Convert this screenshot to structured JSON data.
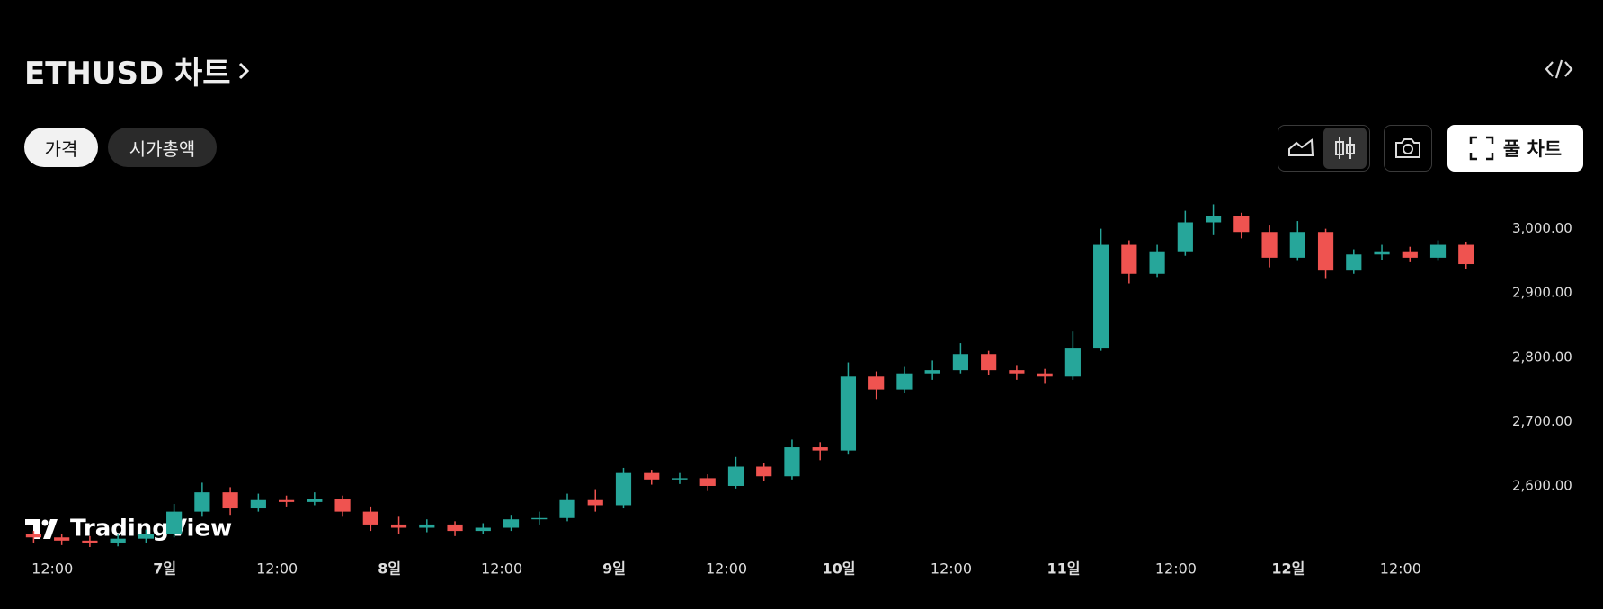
{
  "header": {
    "title": "ETHUSD 차트"
  },
  "tabs": [
    "가격",
    "시가총액"
  ],
  "buttons": {
    "full_chart": "풀 차트"
  },
  "watermark": "TradingView",
  "chart_data": {
    "type": "candlestick",
    "x": [
      10,
      13,
      16,
      19,
      22,
      25,
      28,
      31,
      34,
      37,
      40,
      43,
      46,
      49,
      52,
      55,
      58,
      61,
      64,
      67,
      70,
      73,
      76,
      79,
      82,
      85,
      88,
      91,
      94,
      97,
      100,
      103,
      106,
      109,
      112,
      115,
      118,
      121,
      124,
      127,
      130,
      133,
      136,
      139,
      142,
      145,
      148,
      151,
      154,
      157,
      160,
      163
    ],
    "open": [
      2525,
      2520,
      2515,
      2512,
      2518,
      2525,
      2560,
      2590,
      2565,
      2578,
      2575,
      2580,
      2560,
      2540,
      2535,
      2540,
      2530,
      2535,
      2548,
      2550,
      2578,
      2570,
      2620,
      2610,
      2612,
      2600,
      2630,
      2615,
      2660,
      2655,
      2770,
      2750,
      2775,
      2780,
      2805,
      2780,
      2775,
      2770,
      2815,
      2975,
      2930,
      2965,
      3010,
      3020,
      2995,
      2955,
      2995,
      2935,
      2960,
      2965,
      2955,
      2975
    ],
    "high": [
      2530,
      2525,
      2522,
      2525,
      2532,
      2572,
      2605,
      2598,
      2588,
      2585,
      2590,
      2585,
      2568,
      2552,
      2548,
      2545,
      2542,
      2555,
      2560,
      2588,
      2595,
      2628,
      2625,
      2620,
      2618,
      2645,
      2635,
      2672,
      2668,
      2792,
      2778,
      2785,
      2795,
      2822,
      2810,
      2788,
      2782,
      2840,
      3000,
      2982,
      2975,
      3028,
      3038,
      3025,
      3005,
      3012,
      3000,
      2968,
      2975,
      2972,
      2982,
      2980
    ],
    "low": [
      2512,
      2508,
      2505,
      2506,
      2512,
      2520,
      2552,
      2555,
      2560,
      2568,
      2570,
      2552,
      2530,
      2525,
      2528,
      2522,
      2525,
      2530,
      2540,
      2545,
      2560,
      2565,
      2602,
      2603,
      2592,
      2596,
      2608,
      2610,
      2640,
      2650,
      2735,
      2745,
      2765,
      2775,
      2772,
      2765,
      2760,
      2765,
      2810,
      2915,
      2925,
      2958,
      2990,
      2985,
      2940,
      2950,
      2922,
      2930,
      2952,
      2948,
      2950,
      2938
    ],
    "close": [
      2520,
      2515,
      2512,
      2518,
      2525,
      2560,
      2590,
      2565,
      2578,
      2575,
      2580,
      2560,
      2540,
      2535,
      2540,
      2530,
      2535,
      2548,
      2550,
      2578,
      2570,
      2620,
      2610,
      2612,
      2600,
      2630,
      2615,
      2660,
      2655,
      2770,
      2750,
      2775,
      2780,
      2805,
      2780,
      2775,
      2770,
      2815,
      2975,
      2930,
      2965,
      3010,
      3020,
      2995,
      2955,
      2995,
      2935,
      2960,
      2965,
      2955,
      2975,
      2945
    ],
    "up_color": "#26a69a",
    "down_color": "#ef5350",
    "xlim": [
      9,
      166
    ],
    "ylim": [
      2498,
      3054
    ],
    "xticks": [
      {
        "value": 12,
        "label": "12:00"
      },
      {
        "value": 24,
        "label": "7일"
      },
      {
        "value": 36,
        "label": "12:00"
      },
      {
        "value": 48,
        "label": "8일"
      },
      {
        "value": 60,
        "label": "12:00"
      },
      {
        "value": 72,
        "label": "9일"
      },
      {
        "value": 84,
        "label": "12:00"
      },
      {
        "value": 96,
        "label": "10일"
      },
      {
        "value": 108,
        "label": "12:00"
      },
      {
        "value": 120,
        "label": "11일"
      },
      {
        "value": 132,
        "label": "12:00"
      },
      {
        "value": 144,
        "label": "12일"
      },
      {
        "value": 156,
        "label": "12:00"
      }
    ],
    "yticks": [
      {
        "value": 2600,
        "label": "2,600.00"
      },
      {
        "value": 2700,
        "label": "2,700.00"
      },
      {
        "value": 2800,
        "label": "2,800.00"
      },
      {
        "value": 2900,
        "label": "2,900.00"
      },
      {
        "value": 3000,
        "label": "3,000.00"
      }
    ]
  }
}
